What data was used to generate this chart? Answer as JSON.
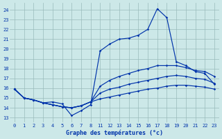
{
  "title": "Graphe des températures (°c)",
  "bg_color": "#cce8e8",
  "line_color": "#0033aa",
  "grid_color": "#99bbbb",
  "ylim": [
    12.5,
    24.7
  ],
  "yticks": [
    13,
    14,
    15,
    16,
    17,
    18,
    19,
    20,
    21,
    22,
    23,
    24
  ],
  "xticks_labels": [
    0,
    1,
    2,
    3,
    4,
    5,
    6,
    7,
    8,
    11,
    12,
    13,
    14,
    15,
    16,
    17,
    18,
    19,
    20,
    21,
    22,
    23
  ],
  "hours": [
    0,
    1,
    2,
    3,
    4,
    5,
    6,
    7,
    8,
    11,
    12,
    13,
    14,
    15,
    16,
    17,
    18,
    19,
    20,
    21,
    22,
    23
  ],
  "temp_main": [
    15.9,
    15.0,
    14.8,
    14.5,
    14.6,
    14.4,
    13.2,
    13.7,
    14.3,
    19.8,
    20.5,
    21.0,
    21.1,
    21.4,
    22.0,
    24.1,
    23.2,
    18.7,
    18.3,
    17.7,
    17.5,
    16.4
  ],
  "temp_hi": [
    15.9,
    15.0,
    14.8,
    14.5,
    14.3,
    14.1,
    14.0,
    14.2,
    14.6,
    16.2,
    16.8,
    17.2,
    17.5,
    17.8,
    18.0,
    18.3,
    18.3,
    18.3,
    18.1,
    17.8,
    17.7,
    17.2
  ],
  "temp_mid": [
    15.9,
    15.0,
    14.8,
    14.5,
    14.3,
    14.1,
    14.0,
    14.2,
    14.6,
    15.5,
    15.9,
    16.1,
    16.4,
    16.6,
    16.8,
    17.0,
    17.2,
    17.3,
    17.2,
    17.0,
    16.9,
    16.5
  ],
  "temp_lo": [
    15.9,
    15.0,
    14.8,
    14.5,
    14.3,
    14.1,
    14.0,
    14.2,
    14.6,
    14.9,
    15.1,
    15.3,
    15.5,
    15.7,
    15.9,
    16.0,
    16.2,
    16.3,
    16.3,
    16.2,
    16.1,
    15.9
  ],
  "figw": 3.2,
  "figh": 2.0,
  "dpi": 100
}
